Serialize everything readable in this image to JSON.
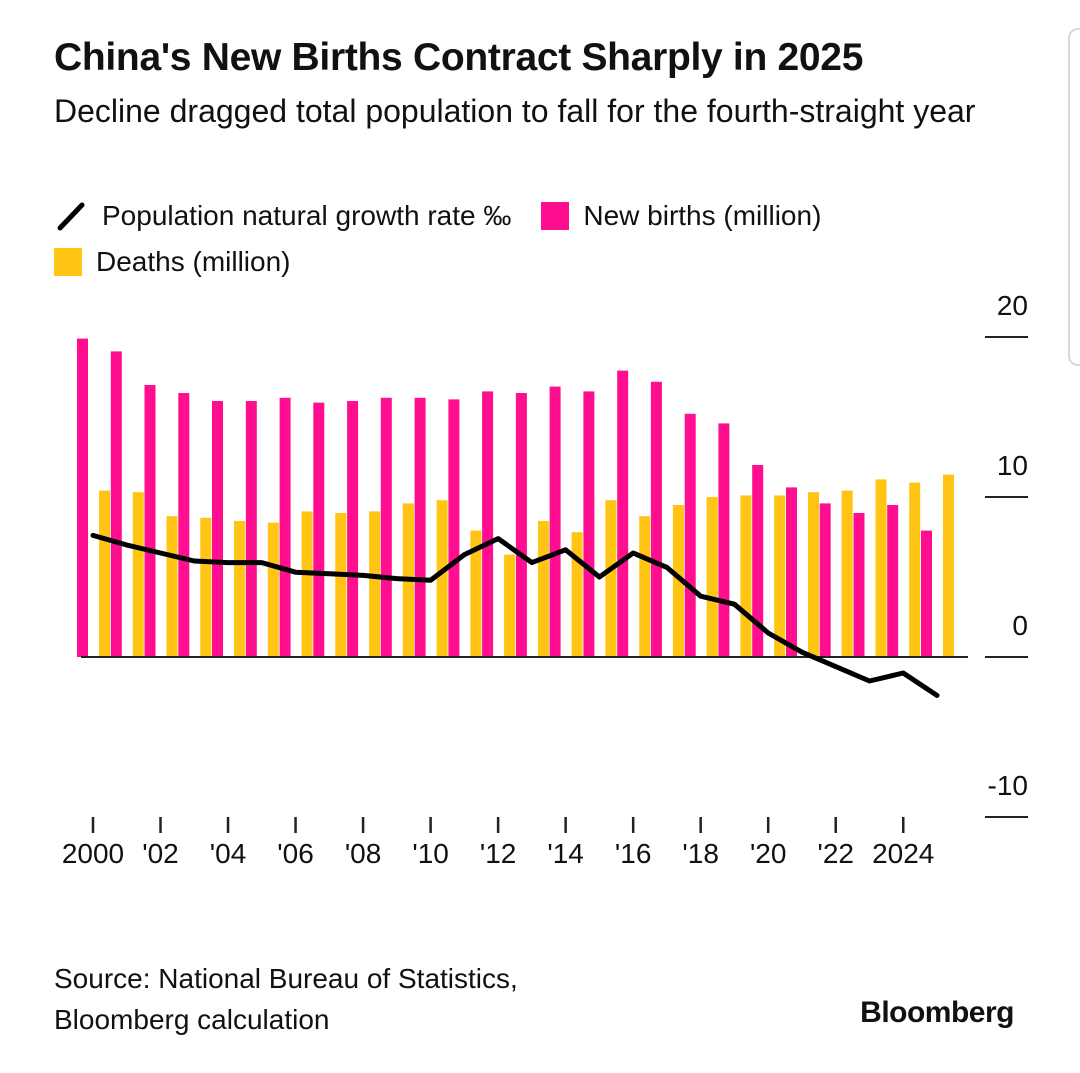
{
  "header": {
    "title": "China's New Births Contract Sharply in 2025",
    "subtitle": "Decline dragged total population to fall for the fourth-straight year"
  },
  "legend": {
    "growth_label": "Population natural growth rate ‰",
    "births_label": "New births (million)",
    "deaths_label": "Deaths (million)"
  },
  "colors": {
    "births": "#ff0f8f",
    "deaths": "#ffc414",
    "growth": "#000000"
  },
  "chart_data": {
    "type": "bar",
    "title": "China's New Births Contract Sharply in 2025",
    "subtitle": "Decline dragged total population to fall for the fourth-straight year",
    "categories": [
      "2000",
      "2001",
      "2002",
      "2003",
      "2004",
      "2005",
      "2006",
      "2007",
      "2008",
      "2009",
      "2010",
      "2011",
      "2012",
      "2013",
      "2014",
      "2015",
      "2016",
      "2017",
      "2018",
      "2019",
      "2020",
      "2021",
      "2022",
      "2023",
      "2024",
      "2025"
    ],
    "series": [
      {
        "name": "New births (million)",
        "type": "bar",
        "values": [
          19.9,
          19.1,
          17.0,
          16.5,
          16.0,
          16.0,
          16.2,
          15.9,
          16.0,
          16.2,
          16.2,
          16.1,
          16.6,
          16.5,
          16.9,
          16.6,
          17.9,
          17.2,
          15.2,
          14.6,
          12.0,
          10.6,
          9.6,
          9.0,
          9.5,
          7.9
        ]
      },
      {
        "name": "Deaths (million)",
        "type": "bar",
        "values": [
          10.4,
          10.3,
          8.8,
          8.7,
          8.5,
          8.4,
          9.1,
          9.0,
          9.1,
          9.6,
          9.8,
          7.9,
          6.4,
          8.5,
          7.8,
          9.8,
          8.8,
          9.5,
          10.0,
          10.1,
          10.1,
          10.3,
          10.4,
          11.1,
          10.9,
          11.4
        ]
      },
      {
        "name": "Population natural growth rate ‰",
        "type": "line",
        "values": [
          7.6,
          7.0,
          6.5,
          6.0,
          5.9,
          5.9,
          5.3,
          5.2,
          5.1,
          4.9,
          4.8,
          6.4,
          7.4,
          5.9,
          6.7,
          5.0,
          6.5,
          5.6,
          3.8,
          3.3,
          1.5,
          0.3,
          -0.6,
          -1.5,
          -1.0,
          -2.4
        ]
      }
    ],
    "x_tick_labels": [
      "2000",
      "'02",
      "'04",
      "'06",
      "'08",
      "'10",
      "'12",
      "'14",
      "'16",
      "'18",
      "'20",
      "'22",
      "2024"
    ],
    "y_tick_labels": [
      "20",
      "10",
      "0",
      "-10"
    ],
    "ylim": [
      -10,
      20
    ],
    "xlabel": "",
    "ylabel": "",
    "grid": false
  },
  "footer": {
    "source_line1": "Source: National Bureau of Statistics,",
    "source_line2": "Bloomberg calculation",
    "brand": "Bloomberg"
  }
}
